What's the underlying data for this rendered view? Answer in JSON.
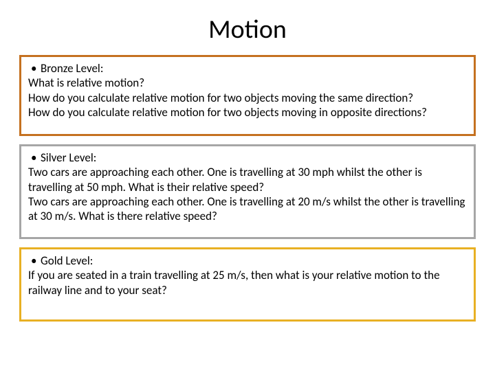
{
  "title": "Motion",
  "bronze": {
    "border_color": "#c57120",
    "label": "Bronze Level:",
    "lines": [
      "What is relative motion?",
      "How do you calculate relative motion for two objects moving the same direction?",
      "How do you calculate relative motion for two objects moving in opposite directions?"
    ]
  },
  "silver": {
    "border_color": "#a6a6a6",
    "label": "Silver Level:",
    "lines": [
      "Two cars are approaching each other. One is travelling at 30 mph whilst the other is travelling at 50 mph. What is their relative speed?",
      "Two cars are approaching each other. One is travelling at 20 m/s whilst the other is travelling at 30 m/s. What is there relative speed?"
    ]
  },
  "gold": {
    "border_color": "#e8b023",
    "label": "Gold Level:",
    "lines": [
      "If you are seated in a train travelling at 25 m/s, then what is your relative motion to the railway line and to your seat?"
    ]
  },
  "box_min_heights": {
    "bronze": 118,
    "silver": 138,
    "gold": 108
  }
}
